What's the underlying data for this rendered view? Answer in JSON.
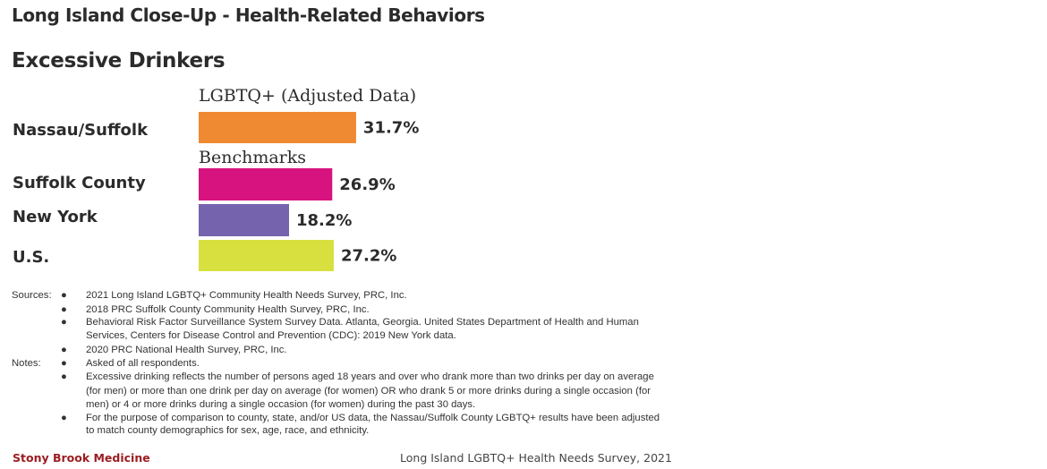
{
  "page": {
    "title": "Long Island Close-Up - Health-Related Behaviors",
    "chart_title": "Excessive Drinkers"
  },
  "chart_data": {
    "type": "bar",
    "orientation": "horizontal",
    "title": "Excessive Drinkers",
    "groups": [
      {
        "label": "LGBTQ+ (Adjusted Data)",
        "categories": [
          "Nassau/Suffolk"
        ]
      },
      {
        "label": "Benchmarks",
        "categories": [
          "Suffolk County",
          "New York",
          "U.S."
        ]
      }
    ],
    "categories": [
      "Nassau/Suffolk",
      "Suffolk County",
      "New York",
      "U.S."
    ],
    "values": [
      31.7,
      26.9,
      18.2,
      27.2
    ],
    "value_labels": [
      "31.7%",
      "26.9%",
      "18.2%",
      "27.2%"
    ],
    "colors": [
      "#f08a32",
      "#d7137f",
      "#7663ad",
      "#d7e03f"
    ],
    "unit": "%",
    "xlim": [
      0,
      100
    ],
    "grid": false,
    "legend": "none"
  },
  "notes": {
    "sources_key": "Sources:",
    "notes_key": "Notes:",
    "bullet": "●",
    "lines": [
      {
        "key": "sources",
        "bullet": true,
        "text": "2021 Long Island LGBTQ+ Community Health Needs Survey, PRC, Inc."
      },
      {
        "key": "",
        "bullet": true,
        "text": "2018 PRC Suffolk County Community Health Survey, PRC, Inc."
      },
      {
        "key": "",
        "bullet": true,
        "text": "Behavioral Risk Factor Surveillance System Survey Data. Atlanta, Georgia. United States Department of Health and Human"
      },
      {
        "key": "",
        "bullet": false,
        "text": "Services, Centers for Disease Control and Prevention (CDC): 2019 New York data."
      },
      {
        "key": "",
        "bullet": true,
        "text": "2020 PRC National Health Survey, PRC, Inc."
      },
      {
        "key": "notes",
        "bullet": true,
        "text": "Asked of all respondents."
      },
      {
        "key": "",
        "bullet": true,
        "text": "Excessive drinking reflects the number of persons aged 18 years and over who drank more than two drinks per day on average"
      },
      {
        "key": "",
        "bullet": false,
        "text": "(for men) or more than one drink per day on average (for women) OR who drank 5 or more drinks during a single occasion (for"
      },
      {
        "key": "",
        "bullet": false,
        "text": "men) or 4 or more drinks during a single occasion (for women) during the past 30 days."
      },
      {
        "key": "",
        "bullet": true,
        "text": "For the purpose of comparison to county, state, and/or US data, the Nassau/Suffolk County LGBTQ+ results have been adjusted"
      },
      {
        "key": "",
        "bullet": false,
        "text": "to match county demographics for sex, age, race, and ethnicity."
      }
    ]
  },
  "footer": {
    "left": "Stony Brook Medicine",
    "right": "Long Island LGBTQ+ Health Needs Survey, 2021"
  }
}
